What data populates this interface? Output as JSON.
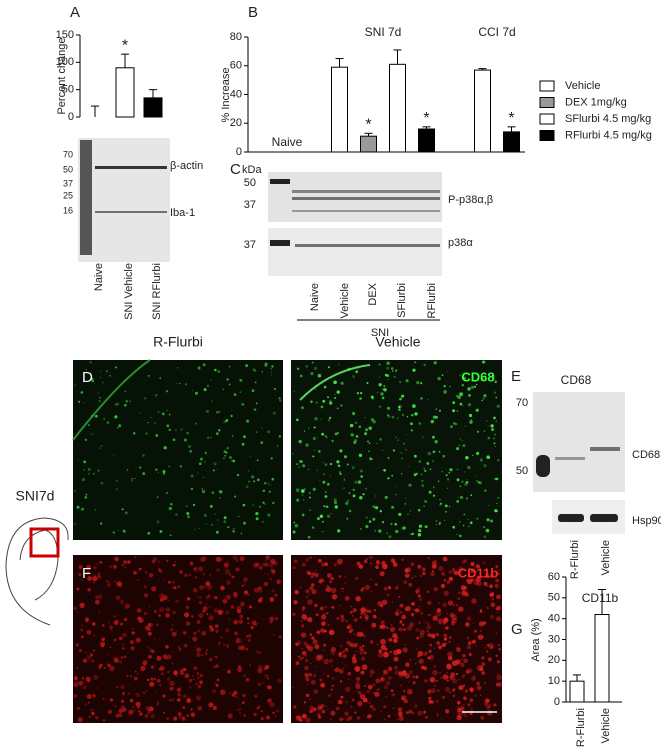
{
  "panel_labels": [
    "A",
    "B",
    "C",
    "D",
    "E",
    "F",
    "G"
  ],
  "chart_data": [
    {
      "type": "bar",
      "ylabel": "Percent change",
      "categories": [
        "Naive",
        "SNI Vehicle",
        "SNI RFlurbi"
      ],
      "values": [
        0,
        90,
        35
      ],
      "errors": [
        20,
        25,
        15
      ],
      "colors": [
        "#ffffff",
        "#ffffff",
        "#000000"
      ],
      "significance": [
        null,
        "*",
        null
      ],
      "ylim": [
        0,
        150
      ],
      "yticks": [
        0,
        50,
        100,
        150
      ]
    },
    {
      "type": "grouped-bar",
      "ylabel": "% Increase",
      "categories": [
        "Naive",
        "SNI 7d",
        "CCI 7d"
      ],
      "series": [
        {
          "name": "Vehicle",
          "color": "#ffffff",
          "values": [
            null,
            59,
            57
          ],
          "errors": [
            null,
            6,
            1
          ],
          "significance": [
            null,
            null,
            null
          ]
        },
        {
          "name": "DEX 1mg/kg",
          "color": "#999999",
          "values": [
            null,
            11,
            null
          ],
          "errors": [
            null,
            2,
            null
          ],
          "significance": [
            null,
            "*",
            null
          ]
        },
        {
          "name": "SFlurbi 4.5 mg/kg",
          "color": "#ffffff",
          "values": [
            null,
            61,
            null
          ],
          "errors": [
            null,
            10,
            null
          ],
          "significance": [
            null,
            null,
            null
          ]
        },
        {
          "name": "RFlurbi 4.5 mg/kg",
          "color": "#000000",
          "values": [
            null,
            16,
            14
          ],
          "errors": [
            null,
            1.5,
            3.5
          ],
          "significance": [
            null,
            "*",
            "*"
          ]
        }
      ],
      "ylim": [
        0,
        80
      ],
      "yticks": [
        0,
        20,
        40,
        60,
        80
      ]
    },
    {
      "type": "bar",
      "title": "CD11b",
      "ylabel": "Area (%)",
      "categories": [
        "R-Flurbi",
        "Vehicle"
      ],
      "values": [
        10,
        42
      ],
      "errors": [
        3,
        12
      ],
      "colors": [
        "#ffffff",
        "#ffffff"
      ],
      "significance": [
        null,
        null
      ],
      "ylim": [
        0,
        60
      ],
      "yticks": [
        0,
        10,
        20,
        30,
        40,
        50,
        60
      ]
    }
  ],
  "blot_a": {
    "markers": [
      "70",
      "50",
      "37",
      "25",
      "16"
    ],
    "bands": [
      "β-actin",
      "Iba-1"
    ]
  },
  "blot_c": {
    "unit": "kDa",
    "markers_top": [
      "50",
      "37"
    ],
    "markers_bottom": [
      "37"
    ],
    "bands": [
      "P-p38α,β",
      "p38α"
    ],
    "lanes": [
      "Naive",
      "Vehicle",
      "DEX",
      "SFlurbi",
      "RFlurbi"
    ],
    "group": "SNI"
  },
  "images": {
    "columns": [
      "R-Flurbi",
      "Vehicle"
    ],
    "stains": [
      "CD68",
      "CD11b"
    ],
    "condition": "SNI7d"
  },
  "blot_e": {
    "title": "CD68",
    "markers": [
      "70",
      "50"
    ],
    "bands": [
      "CD68",
      "Hsp90"
    ],
    "lanes": [
      "R-Flurbi",
      "Vehicle"
    ]
  }
}
